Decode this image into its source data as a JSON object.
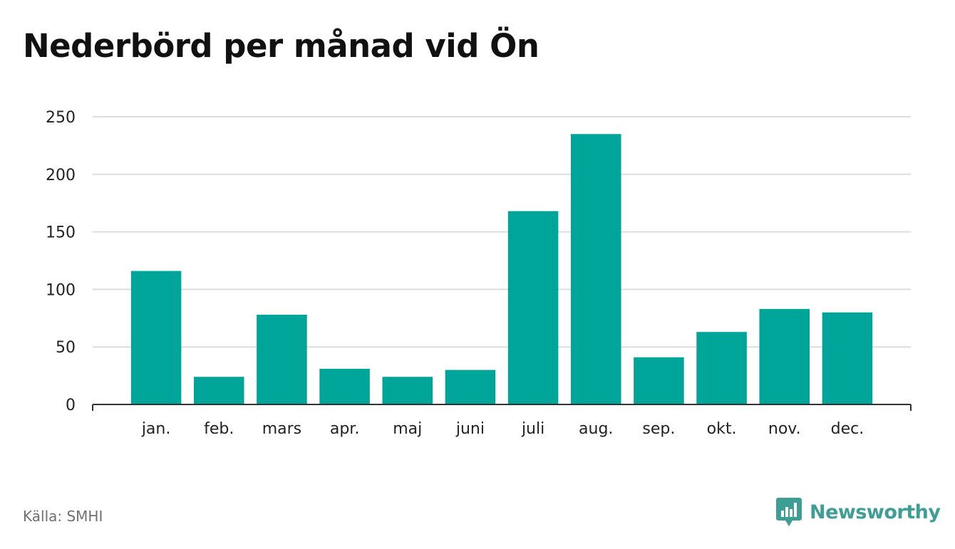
{
  "title": "Nederbörd per månad vid Ön",
  "source": "Källa: SMHI",
  "brand": {
    "name": "Newsworthy",
    "icon": "newsworthy-logo-icon",
    "color": "#3d9e95"
  },
  "chart_data": {
    "type": "bar",
    "categories": [
      "jan.",
      "feb.",
      "mars",
      "apr.",
      "maj",
      "juni",
      "juli",
      "aug.",
      "sep.",
      "okt.",
      "nov.",
      "dec."
    ],
    "values": [
      116,
      24,
      78,
      31,
      24,
      30,
      168,
      235,
      41,
      63,
      83,
      80
    ],
    "ylim": [
      0,
      250
    ],
    "yticks": [
      0,
      50,
      100,
      150,
      200,
      250
    ],
    "grid": true,
    "bar_color": "#00a59a",
    "legend": "none"
  }
}
